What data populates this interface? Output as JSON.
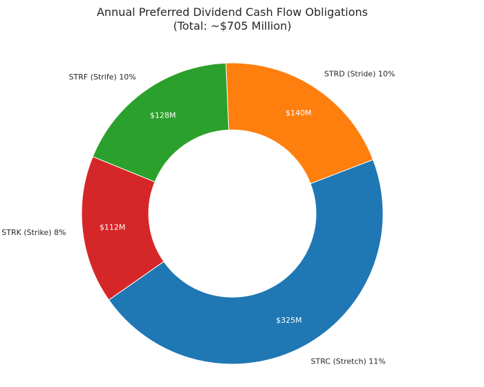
{
  "chart_data": {
    "type": "pie",
    "title": "Annual Preferred Dividend Cash Flow Obligations",
    "subtitle": "(Total: ~$705 Million)",
    "donut": true,
    "slices": [
      {
        "name": "STRC (Stretch) 11%",
        "value": 325,
        "value_label": "$325M",
        "color": "#1f77b4"
      },
      {
        "name": "STRD (Stride) 10%",
        "value": 140,
        "value_label": "$140M",
        "color": "#ff7f0e"
      },
      {
        "name": "STRF (Strife) 10%",
        "value": 128,
        "value_label": "$128M",
        "color": "#2ca02c"
      },
      {
        "name": "STRK (Strike) 8%",
        "value": 112,
        "value_label": "$112M",
        "color": "#d62728"
      }
    ],
    "start_angle_deg": 215,
    "direction": "counterclockwise"
  }
}
